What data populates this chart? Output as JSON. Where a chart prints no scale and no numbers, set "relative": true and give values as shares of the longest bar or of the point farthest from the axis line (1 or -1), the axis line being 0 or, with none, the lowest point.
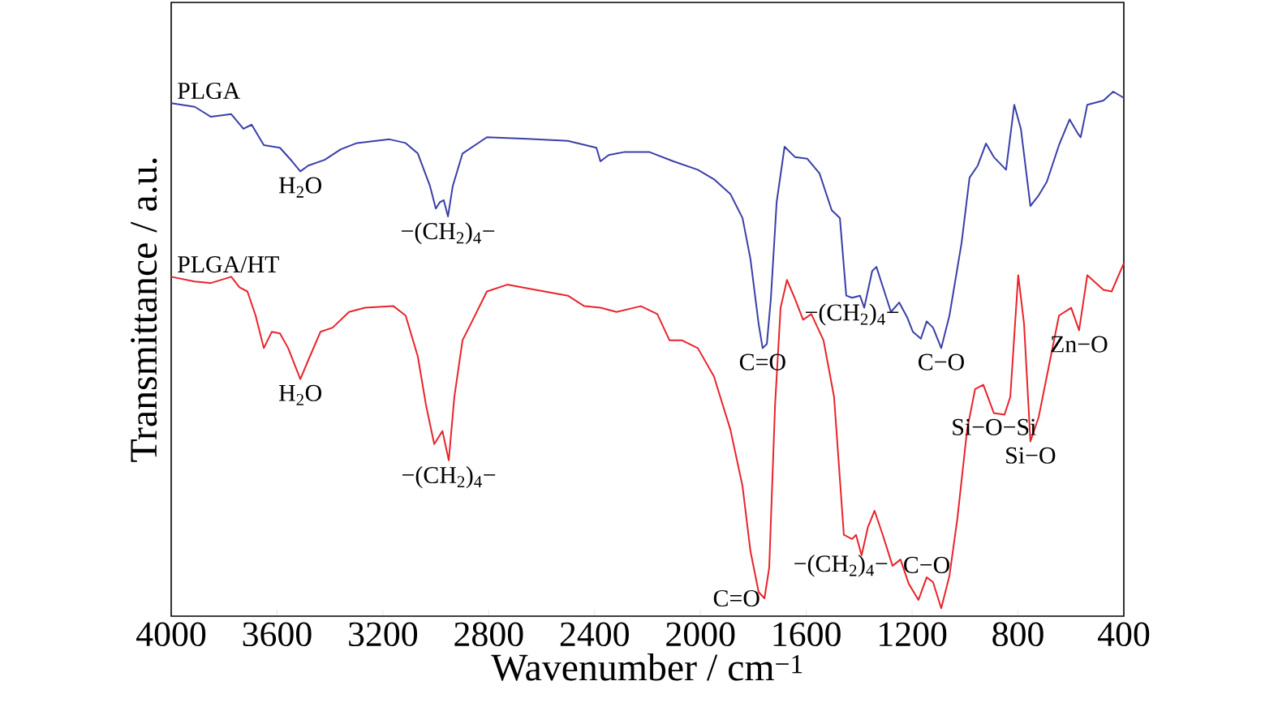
{
  "chart_data": {
    "type": "line",
    "relative": true,
    "xlabel": "Wavenumber / cm$^{−1}$",
    "ylabel": "Transmittance / a.u.",
    "xlim": [
      4000,
      400
    ],
    "xticks": [
      4000,
      3600,
      3200,
      2800,
      2400,
      2000,
      1600,
      1200,
      800,
      400
    ],
    "series": [
      {
        "name": "PLGA",
        "color": "#3a3fa8",
        "x": [
          4000,
          3911,
          3850,
          3773,
          3727,
          3696,
          3650,
          3589,
          3543,
          3512,
          3482,
          3420,
          3359,
          3298,
          3175,
          3114,
          3068,
          3022,
          3000,
          2985,
          2970,
          2954,
          2936,
          2899,
          2807,
          2654,
          2501,
          2393,
          2378,
          2347,
          2286,
          2194,
          2102,
          2010,
          1949,
          1887,
          1841,
          1811,
          1780,
          1765,
          1749,
          1734,
          1712,
          1682,
          1642,
          1596,
          1550,
          1504,
          1473,
          1449,
          1427,
          1397,
          1381,
          1351,
          1335,
          1305,
          1280,
          1249,
          1219,
          1197,
          1167,
          1145,
          1121,
          1090,
          1059,
          1013,
          983,
          952,
          921,
          891,
          845,
          814,
          789,
          753,
          722,
          691,
          645,
          605,
          575,
          563,
          538,
          477,
          440,
          400
        ],
        "values": [
          0.978,
          0.971,
          0.952,
          0.957,
          0.929,
          0.937,
          0.898,
          0.893,
          0.867,
          0.848,
          0.859,
          0.87,
          0.89,
          0.902,
          0.909,
          0.902,
          0.882,
          0.82,
          0.777,
          0.789,
          0.793,
          0.762,
          0.82,
          0.882,
          0.913,
          0.91,
          0.906,
          0.893,
          0.867,
          0.879,
          0.885,
          0.885,
          0.867,
          0.851,
          0.833,
          0.805,
          0.759,
          0.681,
          0.557,
          0.511,
          0.519,
          0.604,
          0.789,
          0.895,
          0.875,
          0.872,
          0.844,
          0.774,
          0.759,
          0.611,
          0.607,
          0.611,
          0.588,
          0.658,
          0.666,
          0.619,
          0.58,
          0.598,
          0.57,
          0.542,
          0.529,
          0.562,
          0.55,
          0.511,
          0.573,
          0.712,
          0.836,
          0.859,
          0.901,
          0.875,
          0.851,
          0.975,
          0.929,
          0.782,
          0.802,
          0.828,
          0.898,
          0.947,
          0.921,
          0.913,
          0.975,
          0.983,
          1.0,
          0.988
        ]
      },
      {
        "name": "PLGA/HT",
        "color": "#e8242b",
        "x": [
          4000,
          3911,
          3850,
          3773,
          3742,
          3712,
          3681,
          3650,
          3620,
          3589,
          3558,
          3512,
          3482,
          3436,
          3390,
          3328,
          3267,
          3160,
          3114,
          3068,
          3037,
          3006,
          2975,
          2951,
          2930,
          2899,
          2868,
          2807,
          2730,
          2623,
          2501,
          2439,
          2378,
          2317,
          2225,
          2163,
          2117,
          2071,
          2010,
          1949,
          1887,
          1841,
          1811,
          1780,
          1758,
          1740,
          1718,
          1697,
          1673,
          1642,
          1612,
          1581,
          1535,
          1495,
          1458,
          1427,
          1412,
          1391,
          1367,
          1342,
          1311,
          1274,
          1244,
          1213,
          1176,
          1145,
          1121,
          1090,
          1059,
          1029,
          992,
          962,
          931,
          891,
          851,
          829,
          799,
          777,
          753,
          722,
          676,
          645,
          599,
          569,
          538,
          477,
          446,
          400
        ],
        "values": [
          0.647,
          0.638,
          0.635,
          0.647,
          0.627,
          0.619,
          0.573,
          0.511,
          0.542,
          0.539,
          0.511,
          0.452,
          0.488,
          0.542,
          0.55,
          0.58,
          0.588,
          0.591,
          0.573,
          0.495,
          0.402,
          0.328,
          0.353,
          0.297,
          0.418,
          0.526,
          0.557,
          0.619,
          0.632,
          0.622,
          0.611,
          0.591,
          0.588,
          0.58,
          0.591,
          0.576,
          0.526,
          0.526,
          0.511,
          0.457,
          0.356,
          0.248,
          0.124,
          0.046,
          0.034,
          0.093,
          0.402,
          0.588,
          0.641,
          0.604,
          0.565,
          0.576,
          0.526,
          0.418,
          0.155,
          0.147,
          0.155,
          0.116,
          0.17,
          0.201,
          0.155,
          0.096,
          0.108,
          0.062,
          0.031,
          0.074,
          0.065,
          0.015,
          0.077,
          0.186,
          0.356,
          0.433,
          0.441,
          0.387,
          0.384,
          0.418,
          0.65,
          0.557,
          0.333,
          0.379,
          0.495,
          0.573,
          0.588,
          0.545,
          0.65,
          0.622,
          0.619,
          0.673
        ]
      }
    ],
    "annotations": [
      {
        "text": "H$_{2}$O",
        "x": 3512,
        "y": 0.848
      },
      {
        "text": "−(CH$_{2}$)$_{4}$−",
        "x": 2954,
        "y": 0.762
      },
      {
        "text": "C=O",
        "x": 1765,
        "y": 0.511
      },
      {
        "text": "−(CH$_{2}$)$_{4}$−",
        "x": 1427,
        "y": 0.607
      },
      {
        "text": "C−O",
        "x": 1090,
        "y": 0.511
      },
      {
        "text": "H$_{2}$O",
        "x": 3512,
        "y": 0.452
      },
      {
        "text": "−(CH$_{2}$)$_{4}$−",
        "x": 2951,
        "y": 0.297
      },
      {
        "text": "C=O",
        "x": 1758,
        "y": 0.034
      },
      {
        "text": "−(CH$_{2}$)$_{4}$−",
        "x": 1274,
        "y": 0.096
      },
      {
        "text": "C−O",
        "x": 1145,
        "y": 0.074
      },
      {
        "text": "Si−O−Si",
        "x": 891,
        "y": 0.387
      },
      {
        "text": "Si−O",
        "x": 753,
        "y": 0.333
      },
      {
        "text": "Zn−O",
        "x": 569,
        "y": 0.545
      }
    ]
  }
}
